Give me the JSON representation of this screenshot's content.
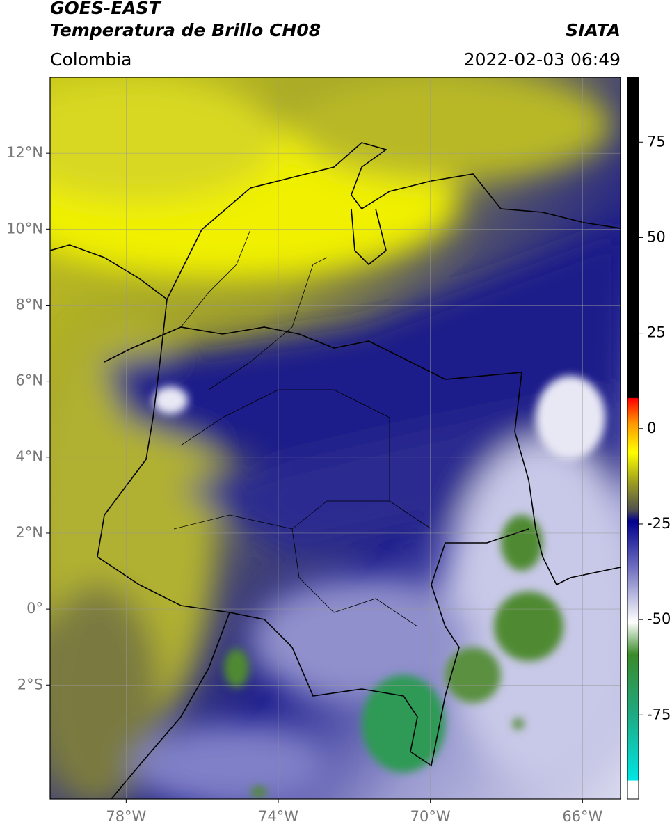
{
  "header": {
    "title": "GOES-EAST",
    "subtitle": "Temperatura de Brillo CH08",
    "region": "Colombia",
    "source": "SIATA",
    "datetime": "2022-02-03 06:49"
  },
  "map": {
    "xlim": [
      -80,
      -65
    ],
    "ylim": [
      -5,
      14
    ],
    "xticks": [
      {
        "value": -78,
        "label": "78°W"
      },
      {
        "value": -74,
        "label": "74°W"
      },
      {
        "value": -70,
        "label": "70°W"
      },
      {
        "value": -66,
        "label": "66°W"
      }
    ],
    "yticks": [
      {
        "value": 12,
        "label": "12°N"
      },
      {
        "value": 10,
        "label": "10°N"
      },
      {
        "value": 8,
        "label": "8°N"
      },
      {
        "value": 6,
        "label": "6°N"
      },
      {
        "value": 4,
        "label": "4°N"
      },
      {
        "value": 2,
        "label": "2°N"
      },
      {
        "value": 0,
        "label": "0°"
      },
      {
        "value": -2,
        "label": "2°S"
      }
    ],
    "grid": true
  },
  "colorbar": {
    "lim": [
      -97,
      92
    ],
    "ticks": [
      75,
      50,
      25,
      0,
      -25,
      -50,
      -75
    ]
  }
}
